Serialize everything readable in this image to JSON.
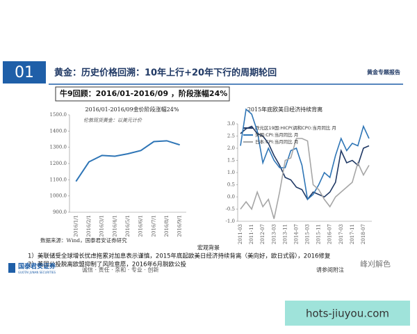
{
  "header": {
    "number": "01",
    "title": "黄金：历史价格回溯：10年上行+20年下行的周期轮回",
    "tag": "黄金专题报告"
  },
  "subtitle": "牛9回顾：2016/01-2016/09 ，阶段涨幅24%",
  "chart_data": [
    {
      "type": "line",
      "title": "2016/01-2016/09金价阶段涨幅24%",
      "note": "伦敦现货黄金：以美元计价",
      "categories": [
        "2016/1/1",
        "2016/2/1",
        "2016/3/1",
        "2016/4/1",
        "2016/5/1",
        "2016/6/1",
        "2016/7/1",
        "2016/8/1",
        "2016/9/1"
      ],
      "values": [
        1090,
        1210,
        1250,
        1245,
        1260,
        1280,
        1335,
        1340,
        1315
      ],
      "color": "#2e75b6",
      "ylim": [
        900,
        1500
      ],
      "yticks": [
        {
          "value": 900,
          "label": "900.0"
        },
        {
          "value": 1000,
          "label": "1000.0"
        },
        {
          "value": 1100,
          "label": "1100.0"
        },
        {
          "value": 1200,
          "label": "1200.0"
        },
        {
          "value": 1300,
          "label": "1300.0"
        },
        {
          "value": 1400,
          "label": "1400.0"
        },
        {
          "value": 1500,
          "label": "1500.0"
        }
      ]
    },
    {
      "type": "line",
      "title": "2015年底欧美日经济持续背离",
      "categories": [
        "2011-03",
        null,
        "2011-11",
        null,
        "2012-07",
        null,
        "2013-03",
        null,
        "2013-11",
        null,
        "2014-07",
        null,
        "2015-03",
        null,
        "2015-11",
        null,
        "2016-07",
        null,
        "2017-03",
        null,
        "2017-11",
        null,
        "2018-07",
        null
      ],
      "series": [
        {
          "name": "欧元区19国:HICP(调和CPI):当月同比 月",
          "color": "#1f3864",
          "values": [
            2.6,
            2.8,
            2.9,
            2.6,
            2.5,
            2.2,
            1.7,
            1.3,
            0.8,
            0.7,
            0.4,
            0.3,
            -0.1,
            0.2,
            0.1,
            0.0,
            0.2,
            0.6,
            1.9,
            1.4,
            1.5,
            1.3,
            2.0,
            2.1
          ]
        },
        {
          "name": "美国:CPI:当月同比 月",
          "color": "#2e75b6",
          "values": [
            2.1,
            3.6,
            3.4,
            2.7,
            1.4,
            2.0,
            1.5,
            1.2,
            1.2,
            1.9,
            2.0,
            1.3,
            -0.1,
            0.1,
            0.5,
            1.0,
            0.8,
            1.7,
            2.4,
            1.9,
            2.2,
            2.1,
            2.9,
            2.4
          ]
        },
        {
          "name": "日本:CPI:当月同比 月",
          "color": "#a6a6a6",
          "values": [
            -0.5,
            -0.2,
            -0.5,
            0.2,
            -0.4,
            -0.1,
            -0.9,
            0.2,
            1.5,
            1.6,
            2.4,
            2.4,
            2.3,
            0.5,
            0.3,
            -0.1,
            -0.4,
            0.0,
            0.2,
            0.4,
            0.6,
            1.4,
            0.9,
            1.3
          ]
        }
      ],
      "ylim": [
        -1,
        3
      ],
      "yticks": [
        {
          "value": -1,
          "label": "-1.0"
        },
        {
          "value": -0.5,
          "label": "-0.5"
        },
        {
          "value": 0,
          "label": "0.0"
        },
        {
          "value": 0.5,
          "label": "0.5"
        },
        {
          "value": 1,
          "label": "1.0"
        },
        {
          "value": 1.5,
          "label": "1.5"
        },
        {
          "value": 2,
          "label": "2.0"
        },
        {
          "value": 2.5,
          "label": "2.5"
        },
        {
          "value": 3,
          "label": "3.0"
        }
      ]
    }
  ],
  "source": "数据来源：Wind，国泰君安证券研究",
  "section": "宏观背景",
  "points": [
    "1）美联储受全球增长忧虑拖累对加息表示谨慎，2015年底起欧美日经济持续背离（美向好，欧日式弱），2016修复",
    "2）英国公投脱离欧盟抑制了风险意愿，2016年6月脱欧公投"
  ],
  "footer": {
    "logo": "国泰君安证券",
    "logo_en": "GUOTAI JUNAN SECURITIES",
    "motto": "诚信 · 责任 · 亲和 · 专业 · 创新",
    "note": "请参阅附注"
  },
  "watermarks": [
    "峰刈解色",
    "hots-jiuyou.com"
  ]
}
